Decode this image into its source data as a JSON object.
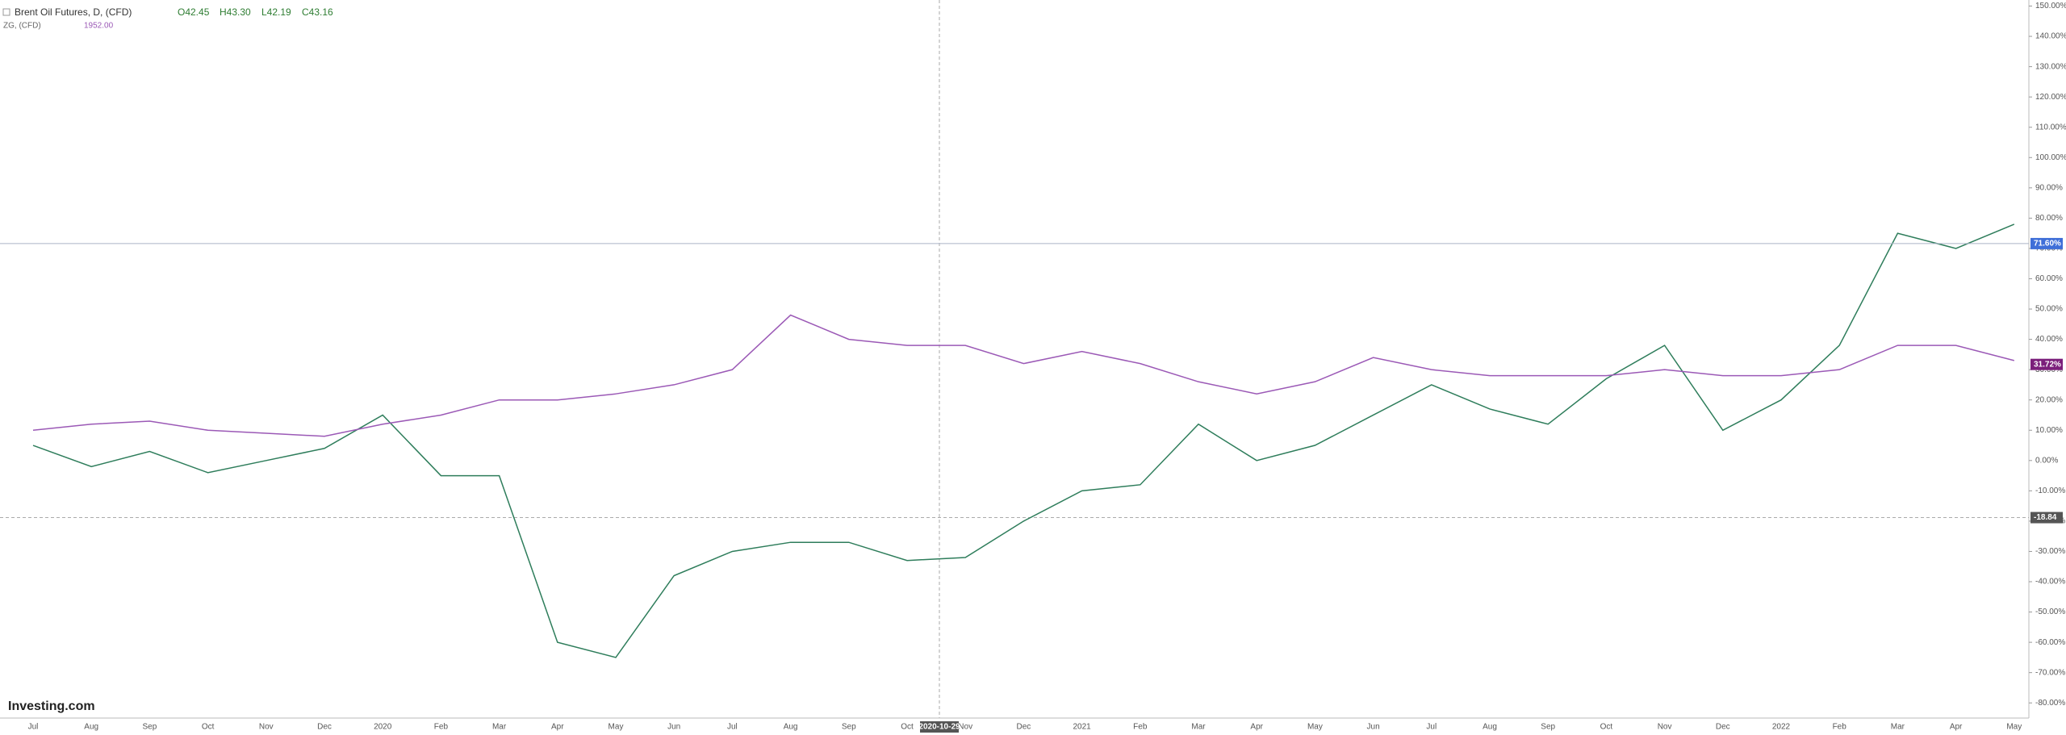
{
  "chart_data": {
    "type": "line",
    "title": "Brent Oil Futures, D, (CFD)",
    "ohlc": [
      "O42.45",
      "H43.30",
      "L42.19",
      "C43.16"
    ],
    "compare_label": "ZG, (CFD)",
    "compare_price": "1952.00",
    "logo": "Investing.com",
    "categories": [
      "Jul",
      "Aug",
      "Sep",
      "Oct",
      "Nov",
      "Dec",
      "2020",
      "Feb",
      "Mar",
      "Apr",
      "May",
      "Jun",
      "Jul",
      "Aug",
      "Sep",
      "Oct",
      "Nov",
      "Dec",
      "2021",
      "Feb",
      "Mar",
      "Apr",
      "May",
      "Jun",
      "Jul",
      "Aug",
      "Sep",
      "Oct",
      "Nov",
      "Dec",
      "2022",
      "Feb",
      "Mar",
      "Apr",
      "May"
    ],
    "series": [
      {
        "name": "Brent Oil Futures, D, (CFD)",
        "color": "#2e7d5b",
        "values": [
          5,
          -2,
          3,
          -4,
          0,
          4,
          15,
          -5,
          -5,
          -60,
          -65,
          -38,
          -30,
          -27,
          -27,
          -33,
          -32,
          -20,
          -10,
          -8,
          12,
          0,
          5,
          15,
          25,
          17,
          12,
          27,
          38,
          10,
          20,
          38,
          75,
          70,
          78
        ],
        "last_value": 71.6,
        "last_label": "71.60%",
        "tag_color": "#3f6fd8"
      },
      {
        "name": "ZG, (CFD)",
        "color": "#9b59b6",
        "values": [
          10,
          12,
          13,
          10,
          9,
          8,
          12,
          15,
          20,
          20,
          22,
          25,
          30,
          48,
          40,
          38,
          38,
          32,
          36,
          32,
          26,
          22,
          26,
          34,
          30,
          28,
          28,
          28,
          30,
          28,
          28,
          30,
          38,
          38,
          33
        ],
        "last_value": 31.72,
        "last_label": "31.72%",
        "tag_color": "#7b1f7b"
      }
    ],
    "crosshair": {
      "x_label": "2020-10-29",
      "y_value": -18.84
    },
    "ylim": [
      -85,
      152
    ],
    "yticks": [
      {
        "value": -80,
        "label": "-80.00%"
      },
      {
        "value": -70,
        "label": "-70.00%"
      },
      {
        "value": -60,
        "label": "-60.00%"
      },
      {
        "value": -50,
        "label": "-50.00%"
      },
      {
        "value": -40,
        "label": "-40.00%"
      },
      {
        "value": -30,
        "label": "-30.00%"
      },
      {
        "value": -20,
        "label": "-20.00%"
      },
      {
        "value": -10,
        "label": "-10.00%"
      },
      {
        "value": 0,
        "label": "0.00%"
      },
      {
        "value": 10,
        "label": "10.00%"
      },
      {
        "value": 20,
        "label": "20.00%"
      },
      {
        "value": 30,
        "label": "30.00%"
      },
      {
        "value": 40,
        "label": "40.00%"
      },
      {
        "value": 50,
        "label": "50.00%"
      },
      {
        "value": 60,
        "label": "60.00%"
      },
      {
        "value": 70,
        "label": "70.00%"
      },
      {
        "value": 80,
        "label": "80.00%"
      },
      {
        "value": 90,
        "label": "90.00%"
      },
      {
        "value": 100,
        "label": "100.00%"
      },
      {
        "value": 110,
        "label": "110.00%"
      },
      {
        "value": 120,
        "label": "120.00%"
      },
      {
        "value": 130,
        "label": "130.00%"
      },
      {
        "value": 140,
        "label": "140.00%"
      },
      {
        "value": 150,
        "label": "150.00%"
      }
    ]
  }
}
